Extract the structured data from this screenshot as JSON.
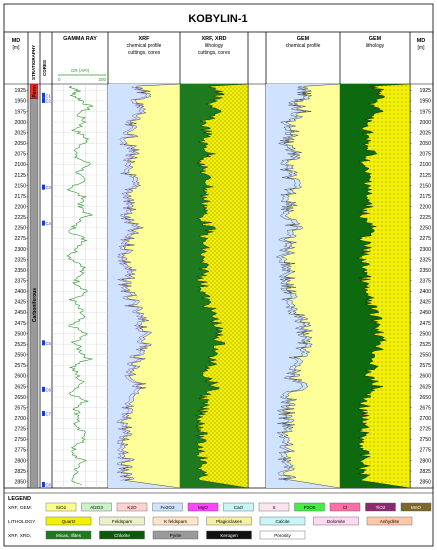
{
  "title": "KOBYLIN-1",
  "header": {
    "md_left": {
      "label": "MD",
      "unit": "[m]"
    },
    "strat": "STRATIGRAPHY",
    "cores": "CORES",
    "gamma": {
      "title": "GAMMA RAY",
      "curve": "GR (API)",
      "min": "0",
      "max": "200"
    },
    "xrf": {
      "line1": "XRF",
      "line2": "chemical profile",
      "line3": "cuttings, cores"
    },
    "xrd": {
      "line1": "XRF,  XRD",
      "line2": "lithology",
      "line3": "cuttings, cores"
    },
    "gem_chem": {
      "line1": "GEM",
      "line2": "chemical profile"
    },
    "gem_lith": {
      "line1": "GEM",
      "line2": "lithology"
    },
    "md_right": {
      "label": "MD",
      "unit": "[m]"
    }
  },
  "stratigraphy": [
    {
      "name": "Perm",
      "top": 1910,
      "bottom": 1945,
      "color": "#e8302a"
    },
    {
      "name": "Carboniferous",
      "top": 1945,
      "bottom": 2865,
      "color": "#9a9a9a"
    }
  ],
  "cores": [
    {
      "label": "C1",
      "md": 1938
    },
    {
      "label": "C2",
      "md": 1950
    },
    {
      "label": "C3",
      "md": 2155
    },
    {
      "label": "C4",
      "md": 2240
    },
    {
      "label": "C5",
      "md": 2523
    },
    {
      "label": "C6",
      "md": 2633
    },
    {
      "label": "C7",
      "md": 2690
    },
    {
      "label": "C8",
      "md": 2858
    }
  ],
  "chart_data": {
    "type": "well-log",
    "depth_range": [
      1910,
      2865
    ],
    "depth_ticks": [
      1925,
      1950,
      1975,
      2000,
      2025,
      2050,
      2075,
      2100,
      2125,
      2150,
      2175,
      2200,
      2225,
      2250,
      2275,
      2300,
      2325,
      2350,
      2375,
      2400,
      2425,
      2450,
      2475,
      2500,
      2525,
      2550,
      2575,
      2600,
      2625,
      2650,
      2675,
      2700,
      2725,
      2750,
      2775,
      2800,
      2825,
      2850
    ],
    "gamma_ray_api": {
      "md": [
        1915,
        1925,
        1935,
        1950,
        1965,
        1980,
        2000,
        2020,
        2040,
        2060,
        2080,
        2100,
        2120,
        2140,
        2160,
        2180,
        2200,
        2220,
        2240,
        2260,
        2280,
        2300,
        2320,
        2340,
        2360,
        2380,
        2400,
        2420,
        2440,
        2460,
        2480,
        2500,
        2520,
        2540,
        2560,
        2580,
        2600,
        2620,
        2640,
        2660,
        2680,
        2700,
        2720,
        2740,
        2760,
        2780,
        2800,
        2820,
        2840,
        2860
      ],
      "values": [
        60,
        95,
        70,
        110,
        140,
        90,
        120,
        80,
        130,
        100,
        75,
        140,
        90,
        110,
        60,
        120,
        95,
        135,
        80,
        70,
        125,
        90,
        60,
        115,
        100,
        85,
        130,
        70,
        95,
        110,
        60,
        120,
        80,
        100,
        135,
        70,
        90,
        110,
        65,
        120,
        85,
        100,
        75,
        130,
        95,
        60,
        110,
        90,
        70,
        100
      ]
    },
    "xrf_quartz_fraction": {
      "md": [
        1915,
        1935,
        1955,
        1975,
        2000,
        2025,
        2050,
        2075,
        2100,
        2125,
        2150,
        2175,
        2200,
        2225,
        2250,
        2275,
        2300,
        2325,
        2350,
        2375,
        2400,
        2425,
        2450,
        2475,
        2500,
        2525,
        2550,
        2575,
        2600,
        2625,
        2650,
        2675,
        2700,
        2725,
        2750,
        2775,
        2800,
        2825,
        2850
      ],
      "values": [
        0.55,
        0.45,
        0.6,
        0.5,
        0.7,
        0.65,
        0.72,
        0.6,
        0.75,
        0.68,
        0.62,
        0.7,
        0.66,
        0.74,
        0.6,
        0.72,
        0.7,
        0.76,
        0.68,
        0.73,
        0.71,
        0.65,
        0.58,
        0.5,
        0.48,
        0.45,
        0.55,
        0.6,
        0.66,
        0.52,
        0.7,
        0.72,
        0.75,
        0.73,
        0.76,
        0.74,
        0.72,
        0.75,
        0.7
      ]
    }
  },
  "legend": {
    "title": "LEGEND",
    "row1_label": "XRF, GEM:",
    "row2_label": "LITHOLOGY",
    "row3_label": "XRF, XRD,",
    "chem": [
      {
        "label": "SiO2",
        "color": "#ffff8c"
      },
      {
        "label": "Al2O3",
        "color": "#ccf2cc"
      },
      {
        "label": "K2O",
        "color": "#ffd2d2"
      },
      {
        "label": "Fe2O3",
        "color": "#cfe2ff"
      },
      {
        "label": "MgO",
        "color": "#ff44ff"
      },
      {
        "label": "CaO",
        "color": "#c8f5f5"
      },
      {
        "label": "S",
        "color": "#ffe4ef"
      },
      {
        "label": "P2O5",
        "color": "#44ee44"
      },
      {
        "label": "Cl",
        "color": "#ff6fa6"
      },
      {
        "label": "TiO2",
        "color": "#8b2a6e"
      },
      {
        "label": "MnO",
        "color": "#7a6a2a"
      }
    ],
    "lith1": [
      {
        "label": "Quartz",
        "color": "#f3f000"
      },
      {
        "label": "Feldspars",
        "color": "#f0f0c8"
      },
      {
        "label": "K feldspars",
        "color": "#ffe4c8"
      },
      {
        "label": "Plagioclases",
        "color": "#f7f0a0"
      },
      {
        "label": "Calcite",
        "color": "#c8f5f5"
      },
      {
        "label": "Dolomite",
        "color": "#ffd9f4"
      },
      {
        "label": "Anhydrite",
        "color": "#ffc8a8"
      }
    ],
    "lith2": [
      {
        "label": "Micas, Illites",
        "color": "#1e7a1e"
      },
      {
        "label": "Chlorite",
        "color": "#0a5a0a"
      },
      {
        "label": "Pyrite",
        "color": "#9a9a9a"
      },
      {
        "label": "Kerogen",
        "color": "#111111"
      },
      {
        "label": "Porosity",
        "color": "#ffffff"
      }
    ]
  }
}
